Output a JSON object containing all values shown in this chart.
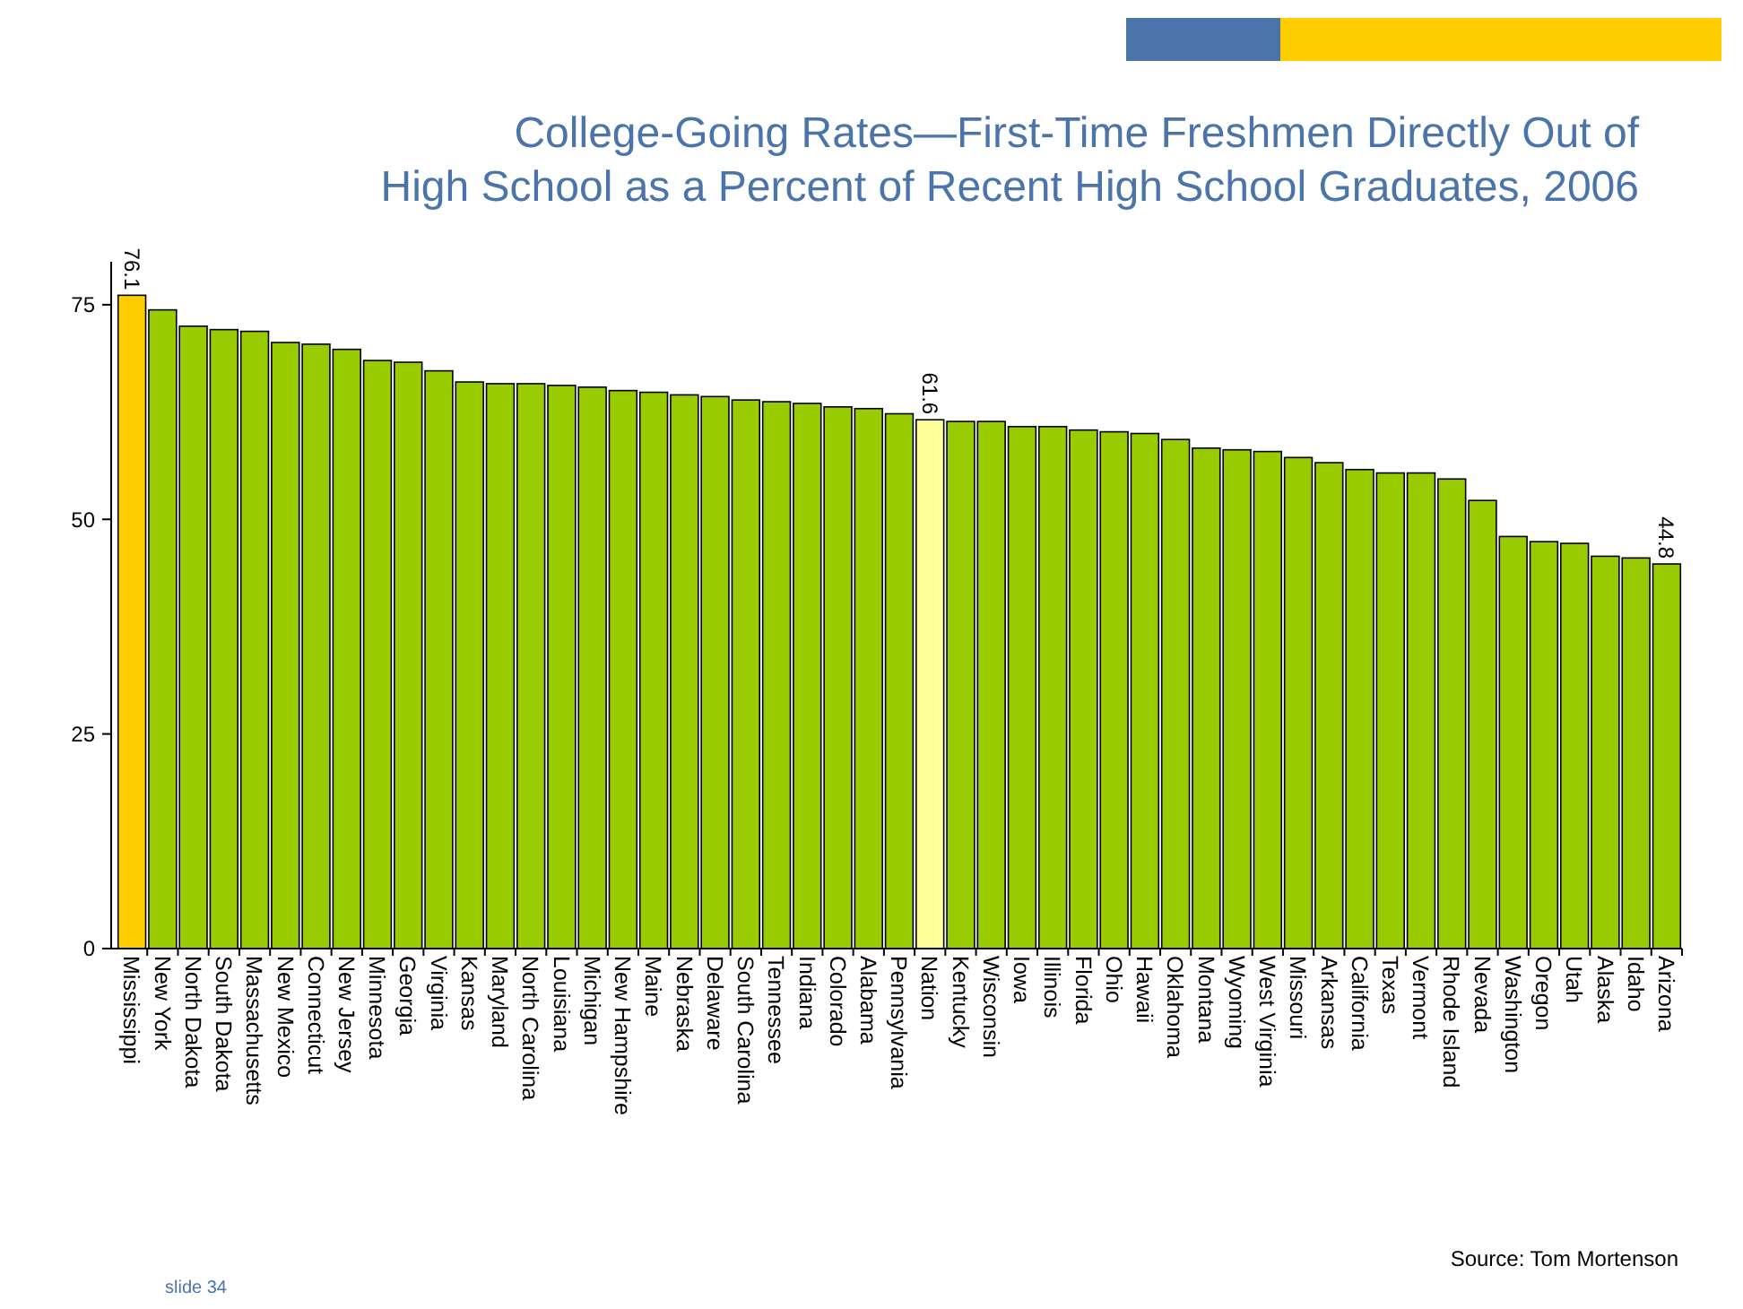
{
  "chart_data": {
    "type": "bar",
    "title": "College-Going Rates—First-Time Freshmen Directly Out of\nHigh School as a Percent of Recent High School Graduates, 2006",
    "categories": [
      "Mississippi",
      "New York",
      "North Dakota",
      "South Dakota",
      "Massachusetts",
      "New Mexico",
      "Connecticut",
      "New Jersey",
      "Minnesota",
      "Georgia",
      "Virginia",
      "Kansas",
      "Maryland",
      "North Carolina",
      "Louisiana",
      "Michigan",
      "New Hampshire",
      "Maine",
      "Nebraska",
      "Delaware",
      "South Carolina",
      "Tennessee",
      "Indiana",
      "Colorado",
      "Alabama",
      "Pennsylvania",
      "Nation",
      "Kentucky",
      "Wisconsin",
      "Iowa",
      "Illinois",
      "Florida",
      "Ohio",
      "Hawaii",
      "Oklahoma",
      "Montana",
      "Wyoming",
      "West Virginia",
      "Missouri",
      "Arkansas",
      "California",
      "Texas",
      "Vermont",
      "Rhode Island",
      "Nevada",
      "Washington",
      "Oregon",
      "Utah",
      "Alaska",
      "Idaho",
      "Arizona"
    ],
    "values": [
      76.1,
      74.4,
      72.5,
      72.1,
      71.9,
      70.6,
      70.4,
      69.8,
      68.5,
      68.3,
      67.3,
      66.0,
      65.8,
      65.8,
      65.6,
      65.4,
      65.0,
      64.8,
      64.5,
      64.3,
      63.9,
      63.7,
      63.5,
      63.1,
      62.9,
      62.3,
      61.6,
      61.4,
      61.4,
      60.8,
      60.8,
      60.4,
      60.2,
      60.0,
      59.3,
      58.3,
      58.1,
      57.9,
      57.2,
      56.6,
      55.8,
      55.4,
      55.4,
      54.7,
      52.2,
      48.0,
      47.4,
      47.2,
      45.7,
      45.5,
      44.8
    ],
    "colors": [
      "#ffcc00",
      "#99cc00",
      "#99cc00",
      "#99cc00",
      "#99cc00",
      "#99cc00",
      "#99cc00",
      "#99cc00",
      "#99cc00",
      "#99cc00",
      "#99cc00",
      "#99cc00",
      "#99cc00",
      "#99cc00",
      "#99cc00",
      "#99cc00",
      "#99cc00",
      "#99cc00",
      "#99cc00",
      "#99cc00",
      "#99cc00",
      "#99cc00",
      "#99cc00",
      "#99cc00",
      "#99cc00",
      "#99cc00",
      "#ffff99",
      "#99cc00",
      "#99cc00",
      "#99cc00",
      "#99cc00",
      "#99cc00",
      "#99cc00",
      "#99cc00",
      "#99cc00",
      "#99cc00",
      "#99cc00",
      "#99cc00",
      "#99cc00",
      "#99cc00",
      "#99cc00",
      "#99cc00",
      "#99cc00",
      "#99cc00",
      "#99cc00",
      "#99cc00",
      "#99cc00",
      "#99cc00",
      "#99cc00",
      "#99cc00",
      "#99cc00"
    ],
    "value_labels": [
      "76.1",
      null,
      null,
      null,
      null,
      null,
      null,
      null,
      null,
      null,
      null,
      null,
      null,
      null,
      null,
      null,
      null,
      null,
      null,
      null,
      null,
      null,
      null,
      null,
      null,
      null,
      "61.6",
      null,
      null,
      null,
      null,
      null,
      null,
      null,
      null,
      null,
      null,
      null,
      null,
      null,
      null,
      null,
      null,
      null,
      null,
      null,
      null,
      null,
      null,
      null,
      "44.8"
    ],
    "ylim": [
      0,
      80
    ],
    "yticks": [
      0,
      25,
      50,
      75
    ],
    "grid": false,
    "annotations": [
      "Source:  Tom Mortenson",
      "slide 34"
    ]
  }
}
